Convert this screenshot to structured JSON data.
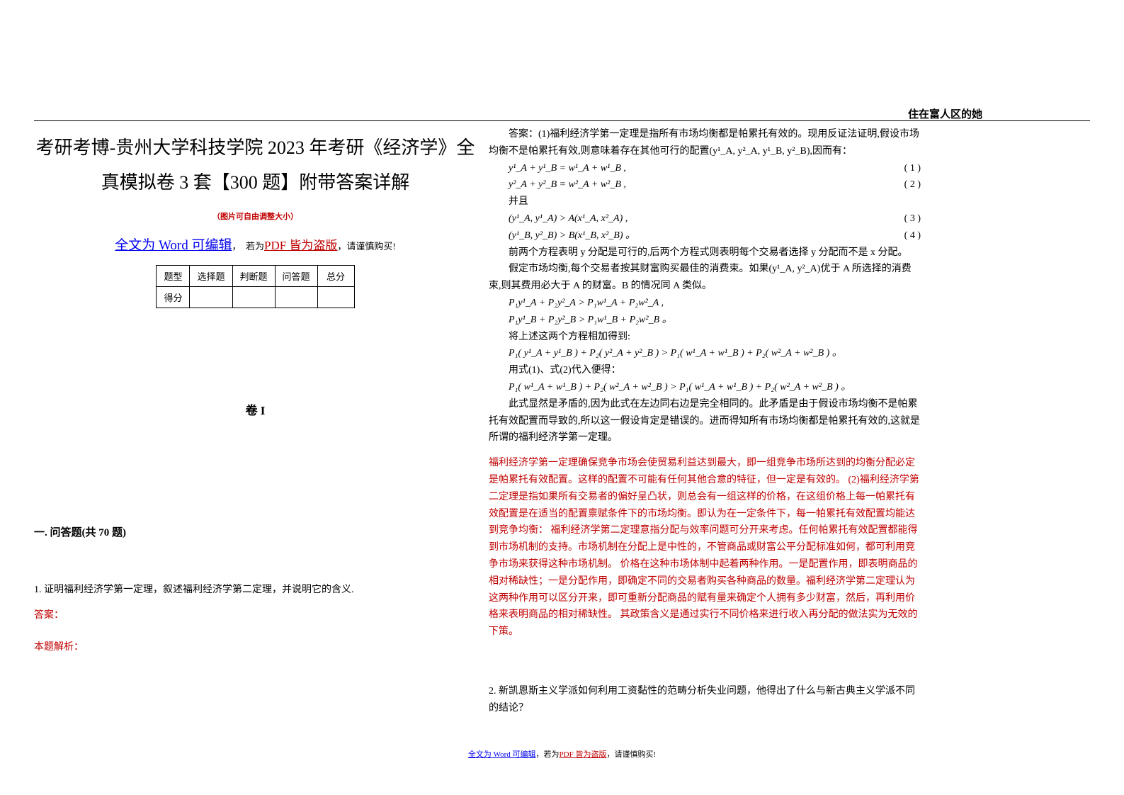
{
  "header": "住在富人区的她",
  "title": "考研考博-贵州大学科技学院 2023 年考研《经济学》全真模拟卷 3 套【300 题】附带答案详解",
  "subtitle": "（图片可自由调整大小）",
  "editable": {
    "prefix": "全文为 Word 可编辑",
    "mid": "，  若为",
    "pdf": "PDF 皆为盗版",
    "suffix": "，请谨慎购买!"
  },
  "score_table": {
    "cols": [
      "题型",
      "选择题",
      "判断题",
      "问答题",
      "总分"
    ],
    "row": [
      "得分",
      "",
      "",
      "",
      ""
    ]
  },
  "volume": "卷 I",
  "section": "一. 问答题(共 70 题)",
  "q1": {
    "num_text": "1. 证明福利经济学第一定理，叙述福利经济学第二定理，并说明它的含义.",
    "ans_label": "答案：",
    "analysis_label": "本题解析："
  },
  "answer": {
    "l1": "答案：(1)福利经济学第一定理是指所有市场均衡都是帕累托有效的。现用反证法证明,假设市场均衡不是帕累托有效,则意味着存在其他可行的配置(y¹_A, y²_A, y¹_B, y²_B),因而有：",
    "eq1_l": "y¹_A + y¹_B = w¹_A + w¹_B ,",
    "eq1_n": "( 1 )",
    "eq2_l": "y²_A + y²_B = w²_A + w²_B ,",
    "eq2_n": "( 2 )",
    "l_and": "并且",
    "eq3_l": "(y¹_A, y¹_A) > A(x¹_A, x²_A) ,",
    "eq3_n": "( 3 )",
    "eq4_l": "(y¹_B, y²_B) > B(x¹_B, x²_B) 。",
    "eq4_n": "( 4 )",
    "l2": "前两个方程表明 y 分配是可行的,后两个方程式则表明每个交易者选择 y 分配而不是 x 分配。",
    "l3": "假定市场均衡,每个交易者按其财富购买最佳的消费束。如果(y¹_A, y²_A)优于 A 所选择的消费束,则其费用必大于 A 的财富。B 的情况同 A 类似。",
    "eq5": "P₁y¹_A + P₂y²_A > P₁w¹_A + P₂w²_A ,",
    "eq6": "P₁y¹_B + P₂y²_B > P₁w¹_B + P₂w²_B 。",
    "l4": "将上述这两个方程相加得到:",
    "eq7": "P₁( y¹_A + y¹_B ) + P₂( y²_A + y²_B ) > P₁( w¹_A + w¹_B ) + P₂( w²_A + w²_B ) 。",
    "l5": "用式(1)、式(2)代入便得：",
    "eq8": "P₁( w¹_A + w¹_B ) + P₂( w²_A + w²_B ) > P₁( w¹_A + w¹_B ) + P₂( w²_A + w²_B ) 。",
    "l6": "此式显然是矛盾的,因为此式在左边同右边是完全相同的。此矛盾是由于假设市场均衡不是帕累托有效配置而导致的,所以这一假设肯定是错误的。进而得知所有市场均衡都是帕累托有效的,这就是所谓的福利经济学第一定理。"
  },
  "red_explanation": "福利经济学第一定理确保竞争市场会使贸易利益达到最大，即一组竞争市场所达到的均衡分配必定是帕累托有效配置。这样的配置不可能有任何其他合意的特征，但一定是有效的。 (2)福利经济学第二定理是指如果所有交易者的偏好呈凸状，则总会有一组这样的价格，在这组价格上每一帕累托有效配置是在适当的配置禀赋条件下的市场均衡。即认为在一定条件下，每一帕累托有效配置均能达到竞争均衡： 福利经济学第二定理意指分配与效率问题可分开来考虑。任何帕累托有效配置都能得到市场机制的支持。市场机制在分配上是中性的，不管商品或财富公平分配标准如何，都可利用竞争市场来获得这种市场机制。 价格在这种市场体制中起着两种作用。一是配置作用，即表明商品的相对稀缺性；一是分配作用，即确定不同的交易者购买各种商品的数量。福利经济学第二定理认为这两种作用可以区分开来，即可重新分配商品的赋有量来确定个人拥有多少财富，然后，再利用价格来表明商品的相对稀缺性。 其政策含义是通过实行不同价格来进行收入再分配的做法实为无效的下策。",
  "q2": "2. 新凯恩斯主义学派如何利用工资黏性的范畴分析失业问题，他得出了什么与新古典主义学派不同的结论？",
  "footer": {
    "w": "全文为 Word 可编辑",
    "mid": "，若为",
    "p": "PDF 皆为盗版",
    "suffix": "，请谨慎购买!"
  }
}
